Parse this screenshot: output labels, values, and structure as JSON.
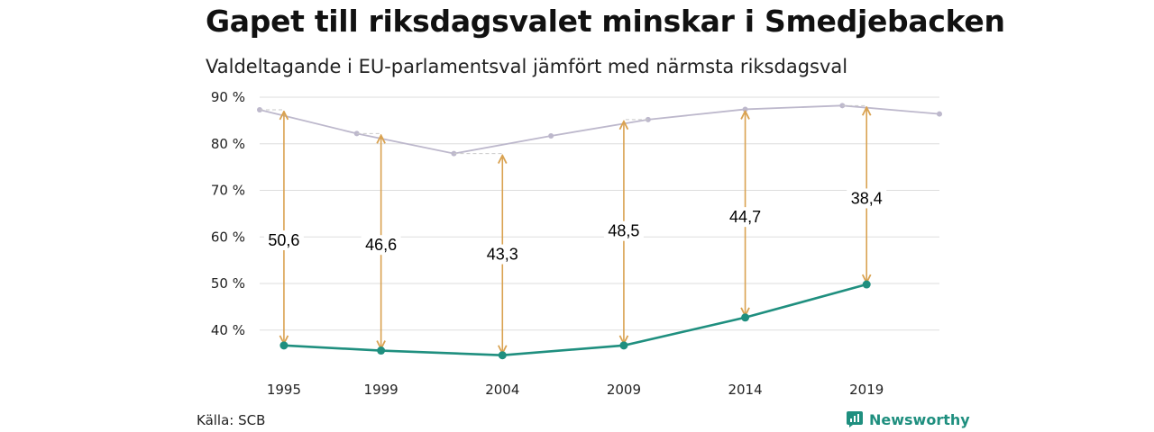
{
  "header": {
    "title": "Gapet till riksdagsvalet minskar i Smedjebacken",
    "subtitle": "Valdeltagande i EU-parlamentsval jämfört med närmsta riksdagsval"
  },
  "footer": {
    "source": "Källa: SCB",
    "brand": "Newsworthy"
  },
  "colors": {
    "riksdag": "#bdb8cc",
    "eu": "#1f8f7f",
    "arrow": "#d9a251",
    "grid": "#dddddd"
  },
  "chart_data": {
    "type": "line",
    "title": "Gapet till riksdagsvalet minskar i Smedjebacken",
    "subtitle": "Valdeltagande i EU-parlamentsval jämfört med närmsta riksdagsval",
    "xlim": [
      1994,
      2022
    ],
    "ylim": [
      33,
      90
    ],
    "yticks": [
      40,
      50,
      60,
      70,
      80,
      90
    ],
    "ytick_labels": [
      "40 %",
      "50 %",
      "60 %",
      "70 %",
      "80 %",
      "90 %"
    ],
    "xticks": [
      1995,
      1999,
      2004,
      2009,
      2014,
      2019
    ],
    "xtick_labels": [
      "1995",
      "1999",
      "2004",
      "2009",
      "2014",
      "2019"
    ],
    "grid": true,
    "series": [
      {
        "key": "riksdag",
        "x": [
          1994,
          1998,
          2002,
          2006,
          2010,
          2014,
          2018,
          2022
        ],
        "values": [
          87.3,
          82.2,
          77.9,
          81.7,
          85.2,
          87.4,
          88.2,
          86.4
        ]
      },
      {
        "key": "eu",
        "x": [
          1995,
          1999,
          2004,
          2009,
          2014,
          2019
        ],
        "values": [
          36.7,
          35.6,
          34.6,
          36.7,
          42.7,
          49.8
        ]
      }
    ],
    "gaps": [
      {
        "x": 1995,
        "from": 36.7,
        "to": 87.3,
        "label": "50,6",
        "label_y": 58.5
      },
      {
        "x": 1999,
        "from": 35.6,
        "to": 82.2,
        "label": "46,6",
        "label_y": 57.5
      },
      {
        "x": 2004,
        "from": 34.6,
        "to": 77.9,
        "label": "43,3",
        "label_y": 55.5
      },
      {
        "x": 2009,
        "from": 36.7,
        "to": 85.2,
        "label": "48,5",
        "label_y": 60.5
      },
      {
        "x": 2014,
        "from": 42.7,
        "to": 87.4,
        "label": "44,7",
        "label_y": 63.5
      },
      {
        "x": 2019,
        "from": 49.8,
        "to": 88.2,
        "label": "38,4",
        "label_y": 67.5
      }
    ]
  }
}
